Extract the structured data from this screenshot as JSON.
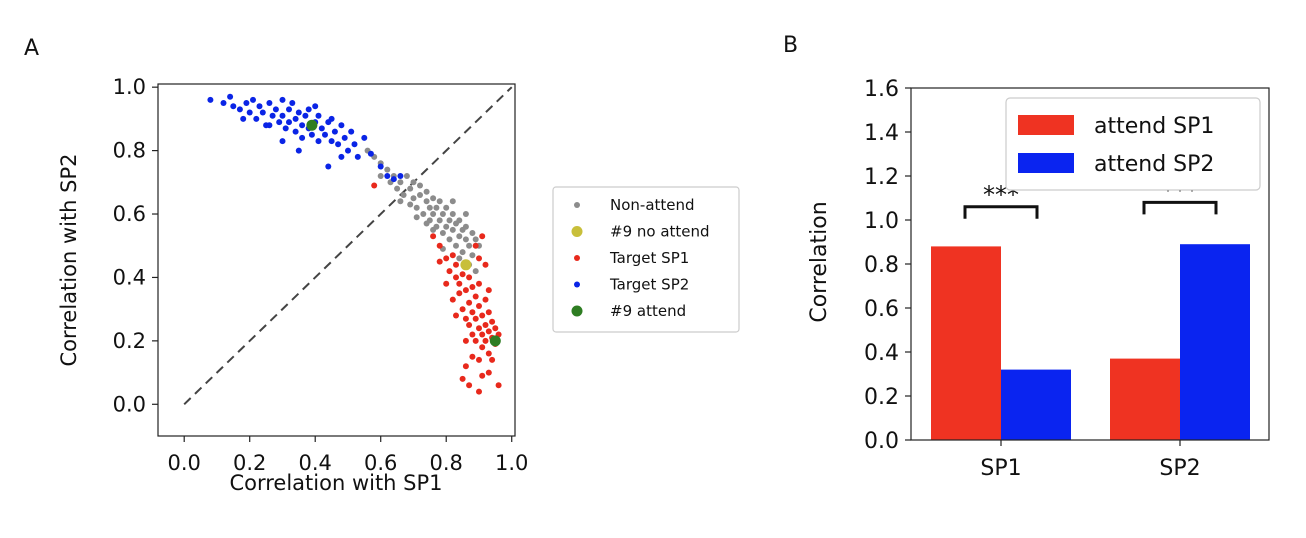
{
  "chart_data": [
    {
      "panel_label": "A",
      "type": "scatter",
      "xlabel": "Correlation with SP1",
      "ylabel": "Correlation with SP2",
      "xlim": [
        -0.08,
        1.01
      ],
      "ylim": [
        -0.1,
        1.01
      ],
      "xticks": [
        "0.0",
        "0.2",
        "0.4",
        "0.6",
        "0.8",
        "1.0"
      ],
      "yticks": [
        "0.0",
        "0.2",
        "0.4",
        "0.6",
        "0.8",
        "1.0"
      ],
      "diagonal_line": {
        "from": [
          0,
          0
        ],
        "to": [
          1,
          1
        ],
        "style": "dashed",
        "color": "#444444"
      },
      "legend_position": "outside-right",
      "series": [
        {
          "name": "Non-attend",
          "color": "#8c8c8c",
          "marker": "small",
          "points": [
            [
              0.56,
              0.8
            ],
            [
              0.58,
              0.78
            ],
            [
              0.6,
              0.76
            ],
            [
              0.6,
              0.72
            ],
            [
              0.62,
              0.74
            ],
            [
              0.63,
              0.7
            ],
            [
              0.64,
              0.72
            ],
            [
              0.65,
              0.68
            ],
            [
              0.66,
              0.7
            ],
            [
              0.67,
              0.66
            ],
            [
              0.68,
              0.72
            ],
            [
              0.69,
              0.68
            ],
            [
              0.7,
              0.65
            ],
            [
              0.7,
              0.7
            ],
            [
              0.71,
              0.62
            ],
            [
              0.72,
              0.66
            ],
            [
              0.72,
              0.69
            ],
            [
              0.73,
              0.6
            ],
            [
              0.74,
              0.64
            ],
            [
              0.74,
              0.67
            ],
            [
              0.75,
              0.62
            ],
            [
              0.75,
              0.58
            ],
            [
              0.76,
              0.6
            ],
            [
              0.76,
              0.65
            ],
            [
              0.77,
              0.56
            ],
            [
              0.77,
              0.62
            ],
            [
              0.78,
              0.58
            ],
            [
              0.78,
              0.64
            ],
            [
              0.79,
              0.54
            ],
            [
              0.79,
              0.6
            ],
            [
              0.8,
              0.56
            ],
            [
              0.8,
              0.62
            ],
            [
              0.81,
              0.52
            ],
            [
              0.81,
              0.58
            ],
            [
              0.82,
              0.55
            ],
            [
              0.82,
              0.6
            ],
            [
              0.83,
              0.5
            ],
            [
              0.83,
              0.57
            ],
            [
              0.84,
              0.53
            ],
            [
              0.84,
              0.58
            ],
            [
              0.85,
              0.48
            ],
            [
              0.85,
              0.55
            ],
            [
              0.86,
              0.52
            ],
            [
              0.86,
              0.56
            ],
            [
              0.87,
              0.5
            ],
            [
              0.88,
              0.54
            ],
            [
              0.88,
              0.47
            ],
            [
              0.89,
              0.52
            ],
            [
              0.9,
              0.5
            ],
            [
              0.82,
              0.64
            ],
            [
              0.76,
              0.55
            ],
            [
              0.74,
              0.57
            ],
            [
              0.71,
              0.59
            ],
            [
              0.69,
              0.63
            ],
            [
              0.66,
              0.64
            ],
            [
              0.87,
              0.44
            ],
            [
              0.89,
              0.42
            ],
            [
              0.84,
              0.46
            ],
            [
              0.79,
              0.49
            ],
            [
              0.86,
              0.6
            ]
          ]
        },
        {
          "name": "#9 no attend",
          "color": "#c8bf3a",
          "marker": "large",
          "points": [
            [
              0.86,
              0.44
            ]
          ]
        },
        {
          "name": "Target SP1",
          "color": "#e8291c",
          "marker": "small",
          "points": [
            [
              0.58,
              0.69
            ],
            [
              0.76,
              0.53
            ],
            [
              0.78,
              0.5
            ],
            [
              0.8,
              0.46
            ],
            [
              0.81,
              0.42
            ],
            [
              0.82,
              0.47
            ],
            [
              0.83,
              0.4
            ],
            [
              0.83,
              0.44
            ],
            [
              0.84,
              0.38
            ],
            [
              0.84,
              0.35
            ],
            [
              0.85,
              0.41
            ],
            [
              0.85,
              0.3
            ],
            [
              0.86,
              0.36
            ],
            [
              0.86,
              0.27
            ],
            [
              0.87,
              0.4
            ],
            [
              0.87,
              0.32
            ],
            [
              0.87,
              0.25
            ],
            [
              0.88,
              0.37
            ],
            [
              0.88,
              0.29
            ],
            [
              0.88,
              0.22
            ],
            [
              0.89,
              0.34
            ],
            [
              0.89,
              0.27
            ],
            [
              0.89,
              0.2
            ],
            [
              0.9,
              0.31
            ],
            [
              0.9,
              0.24
            ],
            [
              0.9,
              0.38
            ],
            [
              0.91,
              0.28
            ],
            [
              0.91,
              0.22
            ],
            [
              0.91,
              0.18
            ],
            [
              0.92,
              0.33
            ],
            [
              0.92,
              0.25
            ],
            [
              0.92,
              0.2
            ],
            [
              0.93,
              0.29
            ],
            [
              0.93,
              0.23
            ],
            [
              0.93,
              0.16
            ],
            [
              0.94,
              0.26
            ],
            [
              0.94,
              0.21
            ],
            [
              0.95,
              0.24
            ],
            [
              0.95,
              0.19
            ],
            [
              0.96,
              0.22
            ],
            [
              0.9,
              0.46
            ],
            [
              0.89,
              0.5
            ],
            [
              0.91,
              0.53
            ],
            [
              0.92,
              0.44
            ],
            [
              0.93,
              0.36
            ],
            [
              0.86,
              0.12
            ],
            [
              0.87,
              0.06
            ],
            [
              0.9,
              0.04
            ],
            [
              0.91,
              0.09
            ],
            [
              0.93,
              0.1
            ],
            [
              0.96,
              0.06
            ],
            [
              0.85,
              0.08
            ],
            [
              0.82,
              0.33
            ],
            [
              0.8,
              0.38
            ],
            [
              0.83,
              0.28
            ],
            [
              0.86,
              0.2
            ],
            [
              0.88,
              0.15
            ],
            [
              0.94,
              0.14
            ],
            [
              0.9,
              0.14
            ],
            [
              0.78,
              0.45
            ]
          ]
        },
        {
          "name": "Target SP2",
          "color": "#0a24e6",
          "marker": "small",
          "points": [
            [
              0.08,
              0.96
            ],
            [
              0.12,
              0.95
            ],
            [
              0.14,
              0.97
            ],
            [
              0.15,
              0.94
            ],
            [
              0.17,
              0.93
            ],
            [
              0.19,
              0.95
            ],
            [
              0.2,
              0.92
            ],
            [
              0.21,
              0.96
            ],
            [
              0.22,
              0.9
            ],
            [
              0.23,
              0.94
            ],
            [
              0.24,
              0.92
            ],
            [
              0.25,
              0.88
            ],
            [
              0.26,
              0.95
            ],
            [
              0.27,
              0.91
            ],
            [
              0.28,
              0.93
            ],
            [
              0.29,
              0.89
            ],
            [
              0.3,
              0.96
            ],
            [
              0.3,
              0.91
            ],
            [
              0.31,
              0.87
            ],
            [
              0.32,
              0.93
            ],
            [
              0.32,
              0.89
            ],
            [
              0.33,
              0.95
            ],
            [
              0.34,
              0.9
            ],
            [
              0.34,
              0.86
            ],
            [
              0.35,
              0.92
            ],
            [
              0.36,
              0.88
            ],
            [
              0.36,
              0.84
            ],
            [
              0.37,
              0.91
            ],
            [
              0.38,
              0.87
            ],
            [
              0.38,
              0.93
            ],
            [
              0.39,
              0.85
            ],
            [
              0.4,
              0.89
            ],
            [
              0.41,
              0.83
            ],
            [
              0.41,
              0.91
            ],
            [
              0.42,
              0.87
            ],
            [
              0.43,
              0.85
            ],
            [
              0.44,
              0.89
            ],
            [
              0.45,
              0.83
            ],
            [
              0.45,
              0.9
            ],
            [
              0.46,
              0.86
            ],
            [
              0.47,
              0.82
            ],
            [
              0.48,
              0.88
            ],
            [
              0.49,
              0.84
            ],
            [
              0.5,
              0.8
            ],
            [
              0.51,
              0.86
            ],
            [
              0.52,
              0.82
            ],
            [
              0.53,
              0.78
            ],
            [
              0.55,
              0.84
            ],
            [
              0.57,
              0.79
            ],
            [
              0.6,
              0.75
            ],
            [
              0.62,
              0.72
            ],
            [
              0.64,
              0.71
            ],
            [
              0.66,
              0.72
            ],
            [
              0.44,
              0.75
            ],
            [
              0.48,
              0.78
            ],
            [
              0.35,
              0.8
            ],
            [
              0.26,
              0.88
            ],
            [
              0.18,
              0.9
            ],
            [
              0.4,
              0.94
            ],
            [
              0.3,
              0.83
            ]
          ]
        },
        {
          "name": "#9 attend",
          "color": "#2e7d22",
          "marker": "large",
          "points": [
            [
              0.39,
              0.88
            ],
            [
              0.95,
              0.2
            ]
          ]
        }
      ]
    },
    {
      "panel_label": "B",
      "type": "bar",
      "ylabel": "Correlation",
      "categories": [
        "SP1",
        "SP2"
      ],
      "ylim": [
        0,
        1.6
      ],
      "yticks": [
        "0.0",
        "0.2",
        "0.4",
        "0.6",
        "0.8",
        "1.0",
        "1.2",
        "1.4",
        "1.6"
      ],
      "legend_position": "top-right",
      "series": [
        {
          "name": "attend SP1",
          "color": "#ef3322",
          "values": [
            0.88,
            0.37
          ]
        },
        {
          "name": "attend SP2",
          "color": "#0a24f0",
          "values": [
            0.32,
            0.89
          ]
        }
      ],
      "significance": [
        {
          "category": "SP1",
          "label": "***",
          "y": 1.06
        },
        {
          "category": "SP2",
          "label": "***",
          "y": 1.08
        }
      ]
    }
  ]
}
